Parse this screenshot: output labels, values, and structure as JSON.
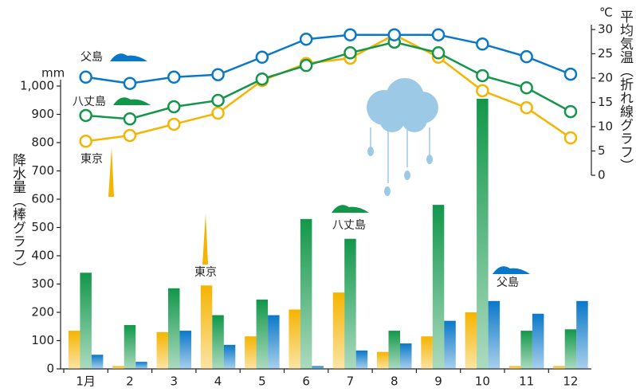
{
  "chart_data": {
    "type": "bar-line",
    "y_label": "降水量（棒グラフ）",
    "y_unit": "mm",
    "y2_label": "平均気温（折れ線グラフ）",
    "y2_unit": "℃",
    "categories": [
      "1月",
      "2",
      "3",
      "4",
      "5",
      "6",
      "7",
      "8",
      "9",
      "10",
      "11",
      "12"
    ],
    "ylim": [
      0,
      1000
    ],
    "yticks": [
      0,
      100,
      200,
      300,
      400,
      500,
      600,
      700,
      800,
      900,
      {
        "value": 1000,
        "label": "1,000"
      }
    ],
    "y2lim": [
      0,
      30
    ],
    "y2ticks": [
      0,
      5,
      10,
      15,
      20,
      25,
      30
    ],
    "series": [
      {
        "name": "東京",
        "type": "bar",
        "color": "#f5b400",
        "values": [
          135,
          10,
          130,
          295,
          115,
          210,
          270,
          60,
          115,
          200,
          10,
          10
        ]
      },
      {
        "name": "八丈島",
        "type": "bar",
        "color": "#12974a",
        "values": [
          340,
          155,
          285,
          190,
          245,
          530,
          460,
          135,
          580,
          955,
          135,
          140
        ]
      },
      {
        "name": "父島",
        "type": "bar",
        "color": "#0a78c8",
        "values": [
          50,
          25,
          135,
          85,
          190,
          10,
          65,
          90,
          170,
          240,
          195,
          240
        ]
      },
      {
        "name": "東京",
        "type": "line",
        "axis": "y2",
        "color": "#f5b400",
        "values": [
          7.0,
          8.2,
          10.5,
          12.8,
          19.5,
          23.0,
          24.1,
          28.9,
          24.3,
          17.4,
          13.9,
          7.7
        ]
      },
      {
        "name": "八丈島",
        "type": "line",
        "axis": "y2",
        "color": "#12974a",
        "values": [
          12.3,
          11.6,
          14.1,
          15.4,
          19.8,
          22.6,
          25.2,
          27.4,
          25.2,
          20.5,
          18.0,
          13.1
        ]
      },
      {
        "name": "父島",
        "type": "line",
        "axis": "y2",
        "color": "#0a78c8",
        "values": [
          20.2,
          18.9,
          20.2,
          20.7,
          24.3,
          28.0,
          28.9,
          28.9,
          28.9,
          27.0,
          24.4,
          20.8
        ]
      }
    ]
  }
}
